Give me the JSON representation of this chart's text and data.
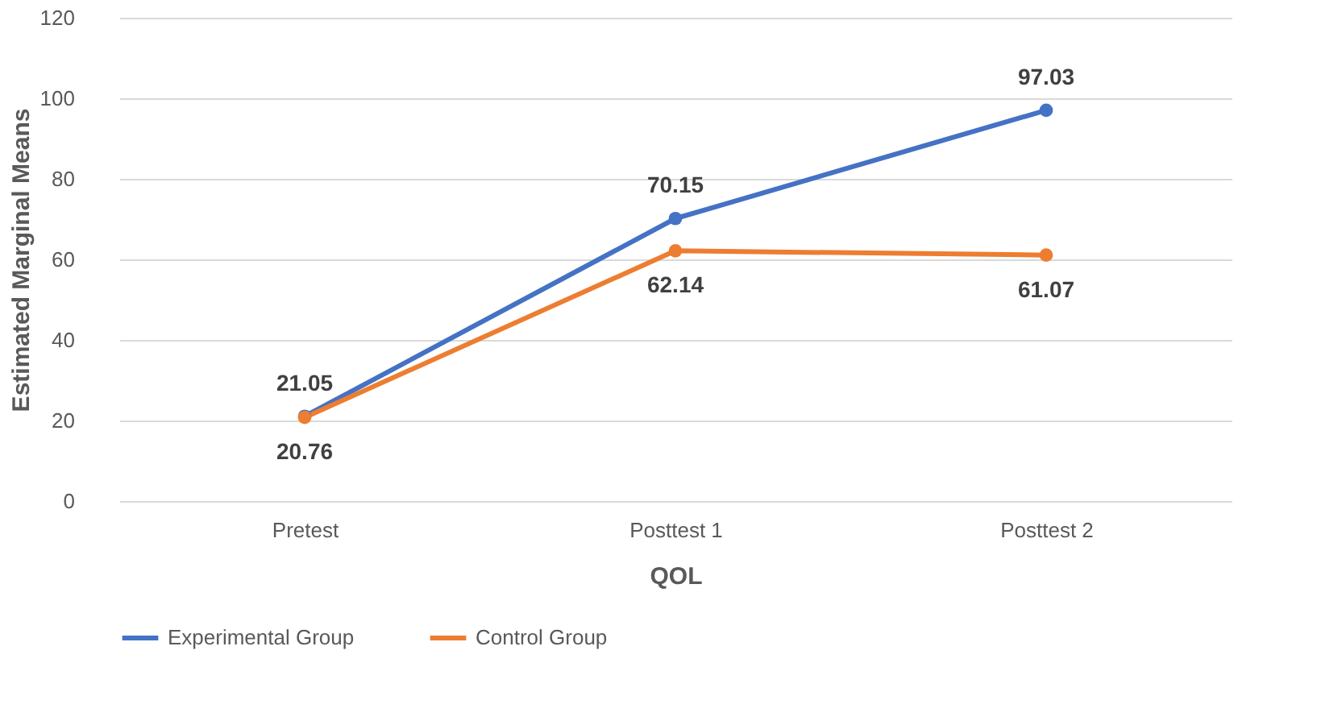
{
  "chart_data": {
    "type": "line",
    "xlabel": "QOL",
    "ylabel": "Estimated Marginal Means",
    "categories": [
      "Pretest",
      "Posttest 1",
      "Posttest 2"
    ],
    "series": [
      {
        "name": "Experimental Group",
        "color": "#4472c4",
        "values": [
          21.05,
          70.15,
          97.03
        ]
      },
      {
        "name": "Control Group",
        "color": "#ed7d31",
        "values": [
          20.76,
          62.14,
          61.07
        ]
      }
    ],
    "ylim": [
      0,
      120
    ],
    "yticks": [
      0,
      20,
      40,
      60,
      80,
      100,
      120
    ],
    "grid": "y",
    "legend": "bottom",
    "marker": "circle",
    "data_labels": true
  }
}
